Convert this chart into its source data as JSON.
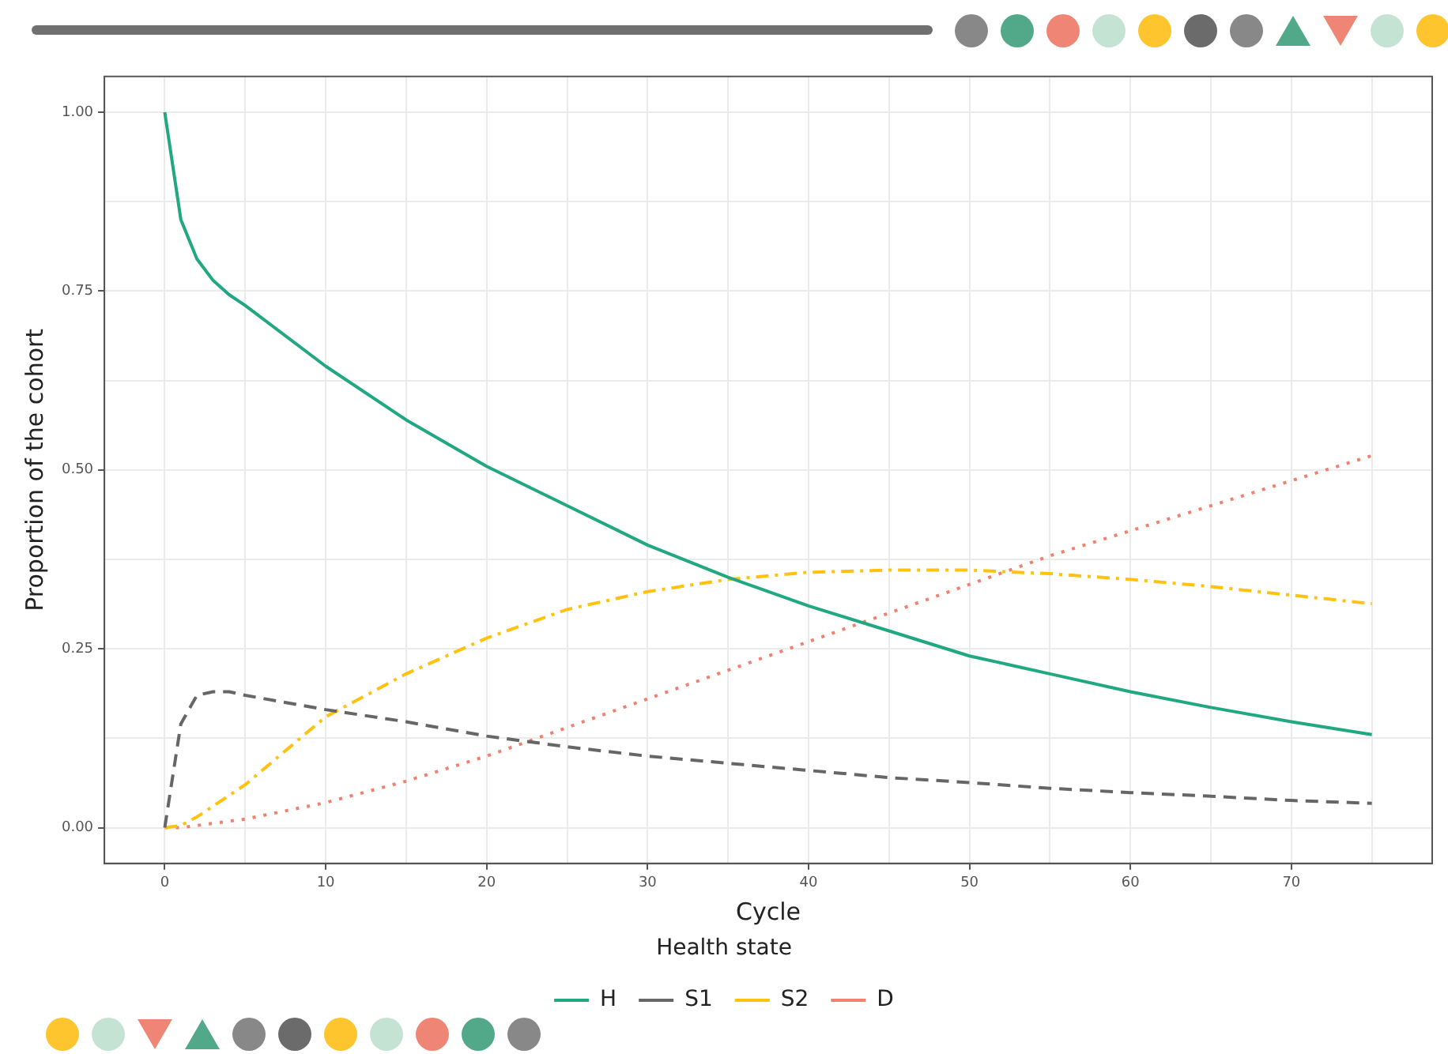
{
  "chart_data": {
    "type": "line",
    "xlabel": "Cycle",
    "ylabel": "Proportion of the cohort",
    "legend_title": "Health state",
    "x": [
      0,
      1,
      2,
      3,
      4,
      5,
      10,
      15,
      20,
      25,
      30,
      35,
      40,
      45,
      50,
      55,
      60,
      65,
      70,
      75
    ],
    "series": [
      {
        "name": "H",
        "color": "#21a883",
        "line_style": "solid",
        "values": [
          1.0,
          0.85,
          0.795,
          0.765,
          0.745,
          0.73,
          0.645,
          0.57,
          0.505,
          0.45,
          0.395,
          0.35,
          0.31,
          0.275,
          0.24,
          0.215,
          0.19,
          0.168,
          0.148,
          0.13
        ]
      },
      {
        "name": "S1",
        "color": "#666666",
        "line_style": "dashed",
        "values": [
          0,
          0.145,
          0.185,
          0.19,
          0.19,
          0.185,
          0.165,
          0.148,
          0.128,
          0.113,
          0.1,
          0.09,
          0.08,
          0.07,
          0.063,
          0.055,
          0.049,
          0.044,
          0.038,
          0.034
        ]
      },
      {
        "name": "S2",
        "color": "#ffc20e",
        "line_style": "dashdot",
        "values": [
          0,
          0.003,
          0.015,
          0.03,
          0.045,
          0.06,
          0.155,
          0.215,
          0.265,
          0.305,
          0.33,
          0.347,
          0.357,
          0.36,
          0.36,
          0.355,
          0.347,
          0.337,
          0.325,
          0.313
        ]
      },
      {
        "name": "D",
        "color": "#f08070",
        "line_style": "dotted",
        "values": [
          0,
          0,
          0.003,
          0.006,
          0.009,
          0.012,
          0.035,
          0.065,
          0.1,
          0.14,
          0.18,
          0.22,
          0.26,
          0.3,
          0.34,
          0.38,
          0.415,
          0.45,
          0.485,
          0.52
        ]
      }
    ],
    "xlim": [
      -3.75,
      78.75
    ],
    "xticks": [
      0,
      {
        "value": 5,
        "label": null
      },
      10,
      {
        "value": 15,
        "label": null
      },
      20,
      {
        "value": 25,
        "label": null
      },
      30,
      {
        "value": 35,
        "label": null
      },
      40,
      {
        "value": 45,
        "label": null
      },
      50,
      {
        "value": 55,
        "label": null
      },
      60,
      {
        "value": 65,
        "label": null
      },
      70,
      {
        "value": 75,
        "label": null
      }
    ],
    "ylim": [
      -0.05,
      1.05
    ],
    "yticks": [
      {
        "value": 0,
        "label": "0.00"
      },
      {
        "value": 0.125,
        "label": null
      },
      {
        "value": 0.25,
        "label": "0.25"
      },
      {
        "value": 0.375,
        "label": null
      },
      {
        "value": 0.5,
        "label": "0.50"
      },
      {
        "value": 0.625,
        "label": null
      },
      {
        "value": 0.75,
        "label": "0.75"
      },
      {
        "value": 0.875,
        "label": null
      },
      {
        "value": 1,
        "label": "1.00"
      }
    ],
    "grid": true,
    "legend": "bottom",
    "marker": "none"
  }
}
